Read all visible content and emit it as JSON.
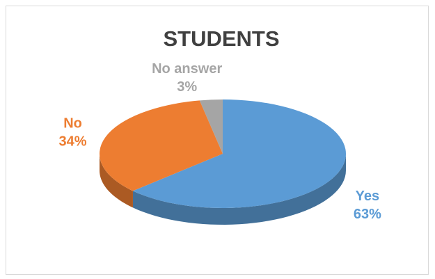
{
  "chart_data": {
    "type": "pie3d",
    "title": "STUDENTS",
    "categories": [
      "Yes",
      "No",
      "No answer"
    ],
    "values": [
      63,
      34,
      3
    ],
    "value_labels": [
      "63%",
      "34%",
      "3%"
    ],
    "colors": [
      "#5b9bd5",
      "#ed7d31",
      "#a5a5a5"
    ]
  }
}
